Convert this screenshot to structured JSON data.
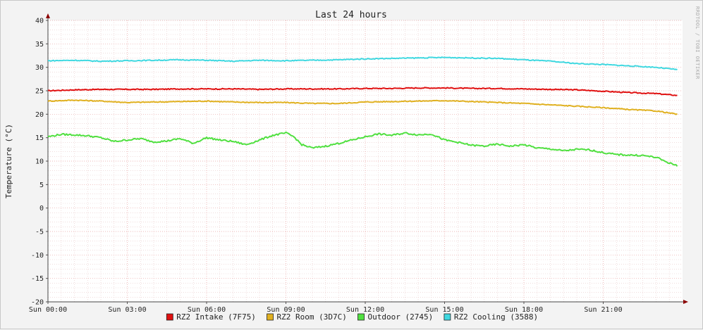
{
  "chart_data": {
    "type": "line",
    "title": "Last 24 hours",
    "ylabel": "Temperature (°C)",
    "xlabel": "",
    "watermark": "RRDTOOL / TOBI OETIKER",
    "ylim": [
      -20,
      40
    ],
    "yticks": [
      -20,
      -15,
      -10,
      -5,
      0,
      5,
      10,
      15,
      20,
      25,
      30,
      35,
      40
    ],
    "xlim": [
      0,
      24
    ],
    "xticks": [
      {
        "x": 0,
        "label": "Sun 00:00"
      },
      {
        "x": 3,
        "label": "Sun 03:00"
      },
      {
        "x": 6,
        "label": "Sun 06:00"
      },
      {
        "x": 9,
        "label": "Sun 09:00"
      },
      {
        "x": 12,
        "label": "Sun 12:00"
      },
      {
        "x": 15,
        "label": "Sun 15:00"
      },
      {
        "x": 18,
        "label": "Sun 18:00"
      },
      {
        "x": 21,
        "label": "Sun 21:00"
      }
    ],
    "grid": true,
    "legend_position": "bottom",
    "series": [
      {
        "name": "RZ2 Intake (7F75)",
        "color": "#e01010",
        "x": [
          0,
          1,
          2,
          3,
          4,
          5,
          6,
          7,
          8,
          9,
          10,
          11,
          12,
          13,
          14,
          15,
          16,
          17,
          18,
          19,
          20,
          21,
          22,
          23,
          23.8
        ],
        "values": [
          25.0,
          25.2,
          25.3,
          25.3,
          25.3,
          25.4,
          25.4,
          25.4,
          25.3,
          25.4,
          25.4,
          25.4,
          25.5,
          25.5,
          25.6,
          25.6,
          25.5,
          25.5,
          25.4,
          25.3,
          25.2,
          24.9,
          24.6,
          24.4,
          24.0
        ]
      },
      {
        "name": "RZ2 Room (3D7C)",
        "color": "#e0b020",
        "x": [
          0,
          1,
          2,
          3,
          4,
          5,
          6,
          7,
          8,
          9,
          10,
          11,
          12,
          13,
          14,
          15,
          16,
          17,
          18,
          19,
          20,
          21,
          22,
          23,
          23.8
        ],
        "values": [
          22.8,
          23.0,
          22.8,
          22.5,
          22.6,
          22.7,
          22.8,
          22.6,
          22.5,
          22.5,
          22.3,
          22.3,
          22.6,
          22.7,
          22.8,
          22.9,
          22.7,
          22.5,
          22.3,
          22.0,
          21.7,
          21.4,
          21.0,
          20.7,
          20.0
        ]
      },
      {
        "name": "Outdoor (2745)",
        "color": "#50e040",
        "x": [
          0,
          0.5,
          1,
          1.5,
          2,
          2.5,
          3,
          3.5,
          4,
          4.5,
          5,
          5.5,
          6,
          6.5,
          7,
          7.5,
          8,
          8.5,
          9,
          9.3,
          9.6,
          10,
          10.5,
          11,
          11.5,
          12,
          12.5,
          13,
          13.5,
          14,
          14.5,
          15,
          15.5,
          16,
          16.5,
          17,
          17.5,
          18,
          18.5,
          19,
          19.5,
          20,
          20.5,
          21,
          21.5,
          22,
          22.5,
          23,
          23.5,
          23.8
        ],
        "values": [
          15.2,
          15.7,
          15.6,
          15.4,
          15.0,
          14.2,
          14.5,
          14.8,
          14.1,
          14.3,
          14.8,
          13.8,
          15.0,
          14.5,
          14.2,
          13.5,
          14.5,
          15.5,
          16.0,
          15.2,
          13.5,
          12.8,
          13.2,
          13.8,
          14.5,
          15.2,
          15.8,
          15.5,
          16.0,
          15.6,
          15.8,
          14.5,
          14.0,
          13.4,
          13.2,
          13.6,
          13.2,
          13.5,
          12.8,
          12.6,
          12.2,
          12.5,
          12.4,
          11.8,
          11.4,
          11.3,
          11.2,
          10.8,
          9.6,
          9.0
        ]
      },
      {
        "name": "RZ2 Cooling (3588)",
        "color": "#40d8e0",
        "x": [
          0,
          1,
          2,
          3,
          4,
          5,
          6,
          7,
          8,
          9,
          10,
          11,
          12,
          13,
          14,
          15,
          16,
          17,
          18,
          19,
          20,
          21,
          22,
          23,
          23.8
        ],
        "values": [
          31.4,
          31.5,
          31.3,
          31.4,
          31.5,
          31.6,
          31.5,
          31.3,
          31.5,
          31.4,
          31.5,
          31.6,
          31.8,
          31.9,
          32.0,
          32.1,
          32.0,
          31.9,
          31.6,
          31.3,
          30.8,
          30.6,
          30.3,
          30.0,
          29.5
        ]
      }
    ]
  }
}
